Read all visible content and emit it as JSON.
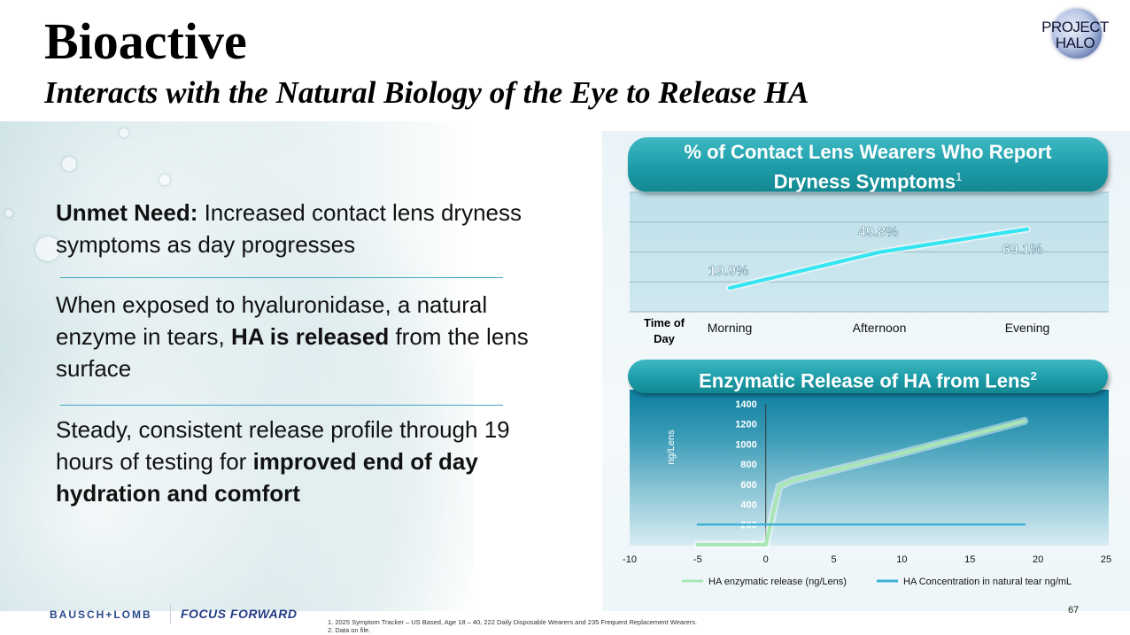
{
  "header": {
    "title": "Bioactive",
    "subtitle": "Interacts with the Natural Biology of the Eye to Release HA"
  },
  "logo": {
    "line1": "PROJECT",
    "line2": "HALO"
  },
  "bullets": [
    {
      "bold": "Unmet Need:",
      "text": " Increased contact lens dryness symptoms as day progresses"
    },
    {
      "pre": "When exposed to hyaluronidase, a natural enzyme in tears, ",
      "bold": "HA is released",
      "post": " from the lens surface"
    },
    {
      "pre": "Steady, consistent release profile through 19 hours of testing for ",
      "bold": "improved end of day hydration and comfort"
    }
  ],
  "chart1_header": {
    "line1": "% of Contact Lens Wearers Who Report",
    "line2": "Dryness Symptoms",
    "sup": "1"
  },
  "chart2_header": {
    "text": "Enzymatic Release of HA from Lens",
    "sup": "2"
  },
  "chart_data": [
    {
      "type": "line",
      "title": "% of Contact Lens Wearers Who Report Dryness Symptoms",
      "xlabel": "Time of Day",
      "categories": [
        "Morning",
        "Afternoon",
        "Evening"
      ],
      "values": [
        19.9,
        49.8,
        69.1
      ],
      "data_labels": [
        "19.9%",
        "49.8%",
        "69.1%"
      ],
      "ylim": [
        0,
        100
      ],
      "grid": true,
      "color": "#33e6f2"
    },
    {
      "type": "line",
      "title": "Enzymatic Release of HA from Lens",
      "ylabel": "ng/Lens",
      "xlim": [
        -10,
        25
      ],
      "ylim": [
        0,
        1400
      ],
      "xticks": [
        -10,
        -5,
        0,
        5,
        10,
        15,
        20,
        25
      ],
      "yticks": [
        0,
        200,
        400,
        600,
        800,
        1000,
        1200,
        1400
      ],
      "legend_position": "bottom",
      "series": [
        {
          "name": "HA enzymatic release (ng/Lens)",
          "color": "#a8e6b4",
          "points": [
            [
              -5,
              0
            ],
            [
              0,
              0
            ],
            [
              1,
              580
            ],
            [
              2,
              640
            ],
            [
              10,
              910
            ],
            [
              19,
              1230
            ]
          ]
        },
        {
          "name": "HA Concentration in natural tear ng/mL",
          "color": "#3fb4d6",
          "points": [
            [
              -5,
              200
            ],
            [
              19,
              200
            ]
          ]
        }
      ]
    }
  ],
  "brand": {
    "left": "BAUSCH+LOMB",
    "right": "FOCUS FORWARD"
  },
  "footnotes": [
    "1. 2025 Symptom Tracker – US Based, Age 18 – 40, 222 Daily Disposable Wearers and 235 Frequent Replacement Wearers.",
    "2. Data on file."
  ],
  "page_number": "67"
}
